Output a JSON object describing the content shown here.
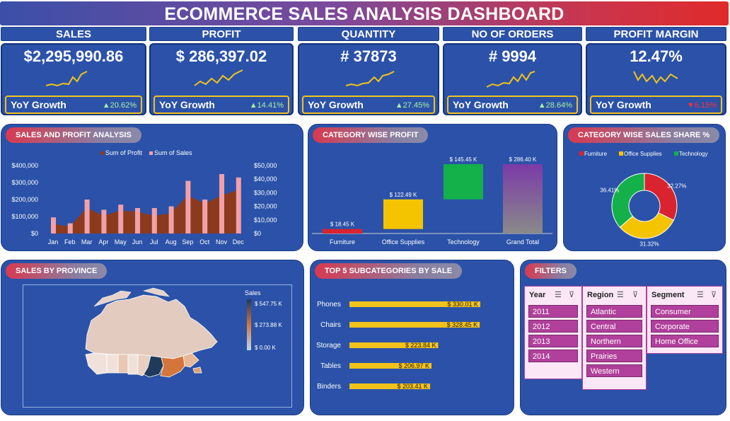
{
  "title": "ECOMMERCE SALES ANALYSIS DASHBOARD",
  "kpis": [
    {
      "label": "SALES",
      "value": "$2,295,990.86",
      "yoy_label": "YoY Growth",
      "yoy": "▲20.62%",
      "trend": "up"
    },
    {
      "label": "PROFIT",
      "value": "$ 286,397.02",
      "yoy_label": "YoY Growth",
      "yoy": "▲14.41%",
      "trend": "up"
    },
    {
      "label": "QUANTITY",
      "value": "# 37873",
      "yoy_label": "YoY Growth",
      "yoy": "▲27.45%",
      "trend": "up"
    },
    {
      "label": "NO OF ORDERS",
      "value": "# 9994",
      "yoy_label": "YoY Growth",
      "yoy": "▲28.64%",
      "trend": "up"
    },
    {
      "label": "PROFIT MARGIN",
      "value": "12.47%",
      "yoy_label": "YoY Growth",
      "yoy": "▼6.15%",
      "trend": "down"
    }
  ],
  "colors": {
    "accent_yellow": "#f2c21c",
    "panel": "#2b52a8",
    "profit": "#8b3a1e",
    "sales": "#f2a0a8",
    "furniture": "#d9232e",
    "office": "#f5c400",
    "technology": "#14b04a",
    "filter": "#b0409b"
  },
  "panels": {
    "sales_profit": "SALES AND PROFIT ANALYSIS",
    "category_profit": "CATEGORY WISE PROFIT",
    "category_share": "CATEGORY WISE SALES SHARE %",
    "province": "SALES BY PROVINCE",
    "top5": "TOP 5 SUBCATEGORIES BY SALE",
    "filters": "FILTERS"
  },
  "chart_data": [
    {
      "type": "area",
      "title": "SALES AND PROFIT ANALYSIS",
      "categories": [
        "Jan",
        "Feb",
        "Mar",
        "Apr",
        "May",
        "Jun",
        "Jul",
        "Aug",
        "Sep",
        "Oct",
        "Nov",
        "Dec"
      ],
      "series": [
        {
          "name": "Sum of Profit",
          "values": [
            7000,
            5000,
            19000,
            13000,
            17000,
            16000,
            13000,
            15000,
            28000,
            22000,
            28000,
            32000
          ]
        },
        {
          "name": "Sum of Sales",
          "values": [
            95000,
            60000,
            200000,
            140000,
            170000,
            150000,
            150000,
            160000,
            310000,
            200000,
            350000,
            330000
          ]
        }
      ],
      "y_left_ticks": [
        "$400,000",
        "$300,000",
        "$200,000",
        "$100,000",
        "$0"
      ],
      "y_right_ticks": [
        "$50,000",
        "$40,000",
        "$30,000",
        "$20,000",
        "$10,000",
        "$0"
      ],
      "ylim_left": [
        0,
        400000
      ],
      "ylim_right": [
        0,
        50000
      ],
      "legend": "top"
    },
    {
      "type": "bar",
      "title": "CATEGORY WISE PROFIT",
      "subtype": "waterfall",
      "categories": [
        "Furniture",
        "Office Supplies",
        "Technology",
        "Grand Total"
      ],
      "values": [
        18.45,
        122.49,
        145.45,
        286.4
      ],
      "labels": [
        "$ 18.45 K",
        "$ 122.49 K",
        "$ 145.45 K",
        "$ 286.40 K"
      ]
    },
    {
      "type": "pie",
      "title": "CATEGORY WISE SALES SHARE %",
      "categories": [
        "Furniture",
        "Office Supplies",
        "Technology"
      ],
      "values": [
        32.27,
        31.32,
        36.41
      ],
      "labels": [
        "32.27%",
        "31.32%",
        "36.41%"
      ],
      "legend": "top"
    },
    {
      "type": "bar",
      "title": "TOP 5 SUBCATEGORIES BY SALE",
      "orientation": "horizontal",
      "categories": [
        "Phones",
        "Chairs",
        "Storage",
        "Tables",
        "Binders"
      ],
      "values": [
        330.01,
        328.45,
        223.84,
        206.97,
        203.41
      ],
      "labels": [
        "$ 330.01 K",
        "$ 328.45 K",
        "$ 223.84 K",
        "$ 206.97 K",
        "$ 203.41 K"
      ]
    }
  ],
  "map": {
    "legend_title": "Sales",
    "legend_max": "$ 547.75 K",
    "legend_mid": "$ 273.88 K",
    "legend_min": "$ 0.00 K"
  },
  "filters": {
    "year": {
      "label": "Year",
      "items": [
        "2011",
        "2012",
        "2013",
        "2014"
      ]
    },
    "region": {
      "label": "Region",
      "items": [
        "Atlantic",
        "Central",
        "Northern",
        "Prairies",
        "Western"
      ]
    },
    "segment": {
      "label": "Segment",
      "items": [
        "Consumer",
        "Corporate",
        "Home Office"
      ]
    }
  }
}
